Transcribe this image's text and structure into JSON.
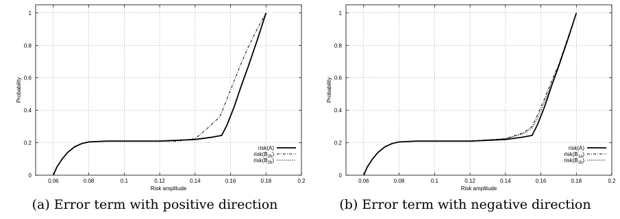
{
  "chart_data": [
    {
      "type": "line",
      "caption": "(a) Error term with positive direction",
      "xlabel": "Risk amplitude",
      "ylabel": "Probability",
      "xlim": [
        0.05,
        0.2
      ],
      "ylim": [
        0,
        1.05
      ],
      "xticks": [
        "0.06",
        "0.08",
        "0.1",
        "0.12",
        "0.14",
        "0.16",
        "0.18",
        "0.2"
      ],
      "xtick_values": [
        0.06,
        0.08,
        0.1,
        0.12,
        0.14,
        0.16,
        0.18,
        0.2
      ],
      "yticks": [
        "0",
        "0.2",
        "0.4",
        "0.6",
        "0.8",
        "1"
      ],
      "ytick_values": [
        0,
        0.2,
        0.4,
        0.6,
        0.8,
        1
      ],
      "grid": true,
      "legend_position": "bottom-right",
      "series": [
        {
          "name": "risk(A)",
          "name_sub": "",
          "style": "solid",
          "x": [
            0.06,
            0.062,
            0.065,
            0.068,
            0.072,
            0.076,
            0.08,
            0.09,
            0.1,
            0.12,
            0.14,
            0.15,
            0.155,
            0.158,
            0.162,
            0.166,
            0.17,
            0.175,
            0.18
          ],
          "y": [
            0.0,
            0.05,
            0.1,
            0.14,
            0.175,
            0.195,
            0.205,
            0.21,
            0.21,
            0.21,
            0.22,
            0.235,
            0.245,
            0.31,
            0.42,
            0.55,
            0.67,
            0.83,
            1.0
          ]
        },
        {
          "name": "risk(B",
          "name_sub": "2b",
          "style": "dashdot",
          "x": [
            0.06,
            0.062,
            0.065,
            0.068,
            0.072,
            0.076,
            0.08,
            0.09,
            0.1,
            0.12,
            0.13,
            0.14,
            0.145,
            0.15,
            0.154,
            0.158,
            0.162,
            0.166,
            0.17,
            0.175,
            0.18
          ],
          "y": [
            0.0,
            0.05,
            0.1,
            0.14,
            0.175,
            0.195,
            0.205,
            0.21,
            0.21,
            0.21,
            0.21,
            0.225,
            0.27,
            0.32,
            0.36,
            0.47,
            0.58,
            0.69,
            0.79,
            0.9,
            1.0
          ]
        },
        {
          "name": "risk(B",
          "name_sub": "2b",
          "style": "dotted",
          "x": [
            0.06,
            0.062,
            0.065,
            0.068,
            0.072,
            0.076,
            0.08,
            0.09,
            0.1,
            0.12,
            0.14,
            0.15,
            0.155,
            0.158,
            0.162,
            0.166,
            0.17,
            0.175,
            0.18
          ],
          "y": [
            0.0,
            0.05,
            0.1,
            0.14,
            0.175,
            0.195,
            0.205,
            0.21,
            0.21,
            0.21,
            0.22,
            0.235,
            0.245,
            0.31,
            0.42,
            0.55,
            0.67,
            0.83,
            1.0
          ]
        }
      ]
    },
    {
      "type": "line",
      "caption": "(b) Error term with negative direction",
      "xlabel": "Risk amplitude",
      "ylabel": "Probability",
      "xlim": [
        0.05,
        0.2
      ],
      "ylim": [
        0,
        1.05
      ],
      "xticks": [
        "0.06",
        "0.08",
        "0.1",
        "0.12",
        "0.14",
        "0.16",
        "0.18",
        "0.2"
      ],
      "xtick_values": [
        0.06,
        0.08,
        0.1,
        0.12,
        0.14,
        0.16,
        0.18,
        0.2
      ],
      "yticks": [
        "0",
        "0.2",
        "0.4",
        "0.6",
        "0.8",
        "1"
      ],
      "ytick_values": [
        0,
        0.2,
        0.4,
        0.6,
        0.8,
        1
      ],
      "grid": true,
      "legend_position": "bottom-right",
      "series": [
        {
          "name": "risk(A)",
          "name_sub": "",
          "style": "solid",
          "x": [
            0.06,
            0.062,
            0.065,
            0.068,
            0.072,
            0.076,
            0.08,
            0.09,
            0.1,
            0.12,
            0.14,
            0.15,
            0.155,
            0.158,
            0.162,
            0.166,
            0.17,
            0.175,
            0.18
          ],
          "y": [
            0.0,
            0.05,
            0.1,
            0.14,
            0.175,
            0.195,
            0.205,
            0.21,
            0.21,
            0.21,
            0.22,
            0.235,
            0.245,
            0.31,
            0.42,
            0.55,
            0.67,
            0.83,
            1.0
          ]
        },
        {
          "name": "risk(B",
          "name_sub": "1a",
          "style": "dashdot",
          "x": [
            0.06,
            0.062,
            0.065,
            0.068,
            0.072,
            0.076,
            0.08,
            0.09,
            0.1,
            0.12,
            0.14,
            0.15,
            0.155,
            0.158,
            0.162,
            0.166,
            0.17,
            0.175,
            0.18
          ],
          "y": [
            0.0,
            0.05,
            0.1,
            0.14,
            0.175,
            0.195,
            0.205,
            0.21,
            0.21,
            0.21,
            0.225,
            0.26,
            0.3,
            0.37,
            0.47,
            0.58,
            0.68,
            0.84,
            1.0
          ]
        },
        {
          "name": "risk(B",
          "name_sub": "1b",
          "style": "dotted",
          "x": [
            0.06,
            0.062,
            0.065,
            0.068,
            0.072,
            0.076,
            0.08,
            0.09,
            0.1,
            0.12,
            0.14,
            0.15,
            0.155,
            0.158,
            0.162,
            0.166,
            0.17,
            0.175,
            0.18
          ],
          "y": [
            0.0,
            0.05,
            0.1,
            0.14,
            0.175,
            0.195,
            0.205,
            0.21,
            0.21,
            0.21,
            0.225,
            0.255,
            0.29,
            0.35,
            0.45,
            0.56,
            0.67,
            0.83,
            1.0
          ]
        }
      ]
    }
  ]
}
